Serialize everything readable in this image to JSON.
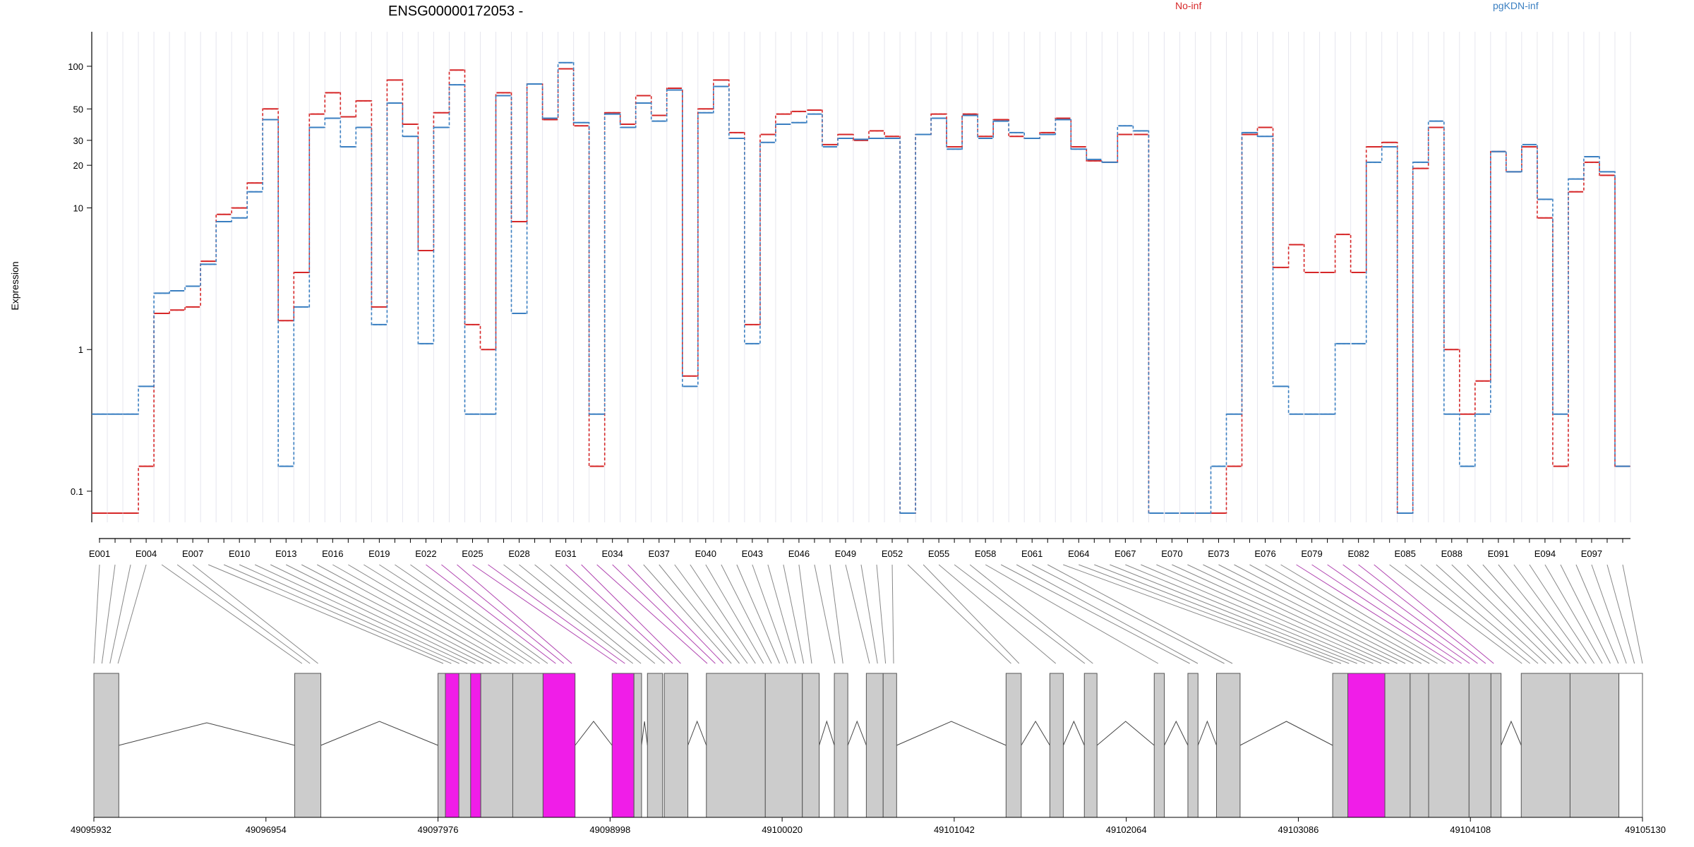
{
  "chart_data": {
    "type": "line",
    "title": "ENSG00000172053 -",
    "xlabel": "",
    "ylabel": "Expression",
    "yscale": "log",
    "yticks": [
      0.1,
      1,
      10,
      20,
      30,
      50,
      100
    ],
    "ytick_labels": [
      "0.1",
      "1",
      "10",
      "20",
      "30",
      "50",
      "100"
    ],
    "ylim": [
      0.07,
      120
    ],
    "legend_placement": "top",
    "exon_count": 99,
    "exon_labels": [
      "E001",
      "E004",
      "E007",
      "E010",
      "E013",
      "E016",
      "E019",
      "E022",
      "E025",
      "E028",
      "E031",
      "E034",
      "E037",
      "E040",
      "E043",
      "E046",
      "E049",
      "E052",
      "E055",
      "E058",
      "E061",
      "E064",
      "E067",
      "E070",
      "E073",
      "E076",
      "E079",
      "E082",
      "E085",
      "E088",
      "E091",
      "E094",
      "E097"
    ],
    "series": [
      {
        "name": "No-inf",
        "color": "#d62728",
        "values": [
          0.07,
          0.07,
          0.07,
          0.15,
          1.8,
          1.9,
          2.0,
          4.2,
          9.0,
          10.0,
          15.0,
          50.0,
          1.6,
          3.5,
          46.0,
          65.0,
          44.0,
          57.0,
          2.0,
          80.0,
          39.0,
          5.0,
          47.0,
          94.0,
          1.5,
          1.0,
          65.0,
          8.0,
          75.0,
          42.0,
          96.0,
          38.0,
          0.15,
          47.0,
          39.0,
          62.0,
          45.0,
          70.0,
          0.65,
          50.0,
          80.0,
          34.0,
          1.5,
          33.0,
          46.0,
          48.0,
          49.0,
          28.0,
          33.0,
          30.0,
          35.0,
          32.0,
          0.07,
          33.0,
          46.0,
          27.0,
          46.0,
          32.0,
          42.0,
          32.0,
          31.0,
          34.0,
          43.0,
          27.0,
          21.5,
          21.0,
          33.0,
          33.0,
          0.07,
          0.07,
          0.07,
          0.07,
          0.07,
          0.15,
          33.0,
          37.0,
          3.8,
          5.5,
          3.5,
          3.5,
          6.5,
          3.5,
          27.0,
          29.0,
          0.07,
          19.0,
          37.0,
          1.0,
          0.35,
          0.6,
          25.0,
          18.0,
          27.0,
          8.5,
          0.15,
          13.0,
          21.0,
          17.0,
          0.15
        ]
      },
      {
        "name": "pgKDN-inf",
        "color": "#3a7fc1",
        "values": [
          0.35,
          0.35,
          0.35,
          0.55,
          2.5,
          2.6,
          2.8,
          4.0,
          8.0,
          8.5,
          13.0,
          42.0,
          0.15,
          2.0,
          37.0,
          43.0,
          27.0,
          37.0,
          1.5,
          55.0,
          32.0,
          1.1,
          37.0,
          74.0,
          0.35,
          0.35,
          62.0,
          1.8,
          75.0,
          43.0,
          106.0,
          40.0,
          0.35,
          46.0,
          37.0,
          55.0,
          41.0,
          68.0,
          0.55,
          47.0,
          72.0,
          31.0,
          1.1,
          29.0,
          39.0,
          40.0,
          46.0,
          27.0,
          31.0,
          30.5,
          31.0,
          31.0,
          0.07,
          33.0,
          43.0,
          26.0,
          45.0,
          31.0,
          41.0,
          34.0,
          31.0,
          33.0,
          42.0,
          26.0,
          22.0,
          21.0,
          38.0,
          35.0,
          0.07,
          0.07,
          0.07,
          0.07,
          0.15,
          0.35,
          34.0,
          32.0,
          0.55,
          0.35,
          0.35,
          0.35,
          1.1,
          1.1,
          21.0,
          27.0,
          0.07,
          21.0,
          41.0,
          0.35,
          0.15,
          0.35,
          25.0,
          18.0,
          28.0,
          11.5,
          0.35,
          16.0,
          23.0,
          18.0,
          0.15
        ]
      }
    ],
    "legend": [
      "No-inf",
      "pgKDN-inf"
    ],
    "gene_model": {
      "coordinate_ticks": [
        "49095932",
        "49096954",
        "49097976",
        "49098998",
        "49100020",
        "49101042",
        "49102064",
        "49103086",
        "49104108",
        "49105130"
      ],
      "coord_start": 49095932,
      "coord_end": 49105130,
      "colors": {
        "exon": "#cccccc",
        "highlight": "#f01de8",
        "outline": "#555555",
        "connector": "#888888",
        "highlight_connector": "#b044b0"
      },
      "exon_blocks": [
        {
          "start": 49095932,
          "end": 49096080,
          "highlight": false
        },
        {
          "start": 49097125,
          "end": 49097280,
          "highlight": false
        },
        {
          "start": 49097976,
          "end": 49098020,
          "highlight": false
        },
        {
          "start": 49098020,
          "end": 49098100,
          "highlight": true
        },
        {
          "start": 49098100,
          "end": 49098170,
          "highlight": false
        },
        {
          "start": 49098170,
          "end": 49098230,
          "highlight": true
        },
        {
          "start": 49098230,
          "end": 49098420,
          "highlight": false
        },
        {
          "start": 49098420,
          "end": 49098600,
          "highlight": false
        },
        {
          "start": 49098600,
          "end": 49098790,
          "highlight": true
        },
        {
          "start": 49099010,
          "end": 49099140,
          "highlight": true
        },
        {
          "start": 49099140,
          "end": 49099185,
          "highlight": false
        },
        {
          "start": 49099220,
          "end": 49099310,
          "highlight": false
        },
        {
          "start": 49099320,
          "end": 49099460,
          "highlight": false
        },
        {
          "start": 49099570,
          "end": 49099920,
          "highlight": false
        },
        {
          "start": 49099920,
          "end": 49100140,
          "highlight": false
        },
        {
          "start": 49100140,
          "end": 49100240,
          "highlight": false
        },
        {
          "start": 49100330,
          "end": 49100410,
          "highlight": false
        },
        {
          "start": 49100520,
          "end": 49100620,
          "highlight": false
        },
        {
          "start": 49100620,
          "end": 49100700,
          "highlight": false
        },
        {
          "start": 49101350,
          "end": 49101440,
          "highlight": false
        },
        {
          "start": 49101610,
          "end": 49101690,
          "highlight": false
        },
        {
          "start": 49101815,
          "end": 49101890,
          "highlight": false
        },
        {
          "start": 49102230,
          "end": 49102290,
          "highlight": false
        },
        {
          "start": 49102430,
          "end": 49102490,
          "highlight": false
        },
        {
          "start": 49102600,
          "end": 49102740,
          "highlight": false
        },
        {
          "start": 49103290,
          "end": 49103380,
          "highlight": false
        },
        {
          "start": 49103380,
          "end": 49103600,
          "highlight": true
        },
        {
          "start": 49103600,
          "end": 49103750,
          "highlight": false
        },
        {
          "start": 49103750,
          "end": 49103860,
          "highlight": false
        },
        {
          "start": 49103860,
          "end": 49104100,
          "highlight": false
        },
        {
          "start": 49104100,
          "end": 49104230,
          "highlight": false
        },
        {
          "start": 49104230,
          "end": 49104290,
          "highlight": false
        },
        {
          "start": 49104410,
          "end": 49104700,
          "highlight": false
        },
        {
          "start": 49104700,
          "end": 49104990,
          "highlight": false
        },
        {
          "start": 49104990,
          "end": 49105130,
          "highlight": false
        }
      ],
      "highlight_exons": [
        22,
        23,
        24,
        25,
        26,
        31,
        32,
        33,
        34,
        35,
        78,
        79,
        80,
        81,
        82,
        83
      ]
    }
  }
}
